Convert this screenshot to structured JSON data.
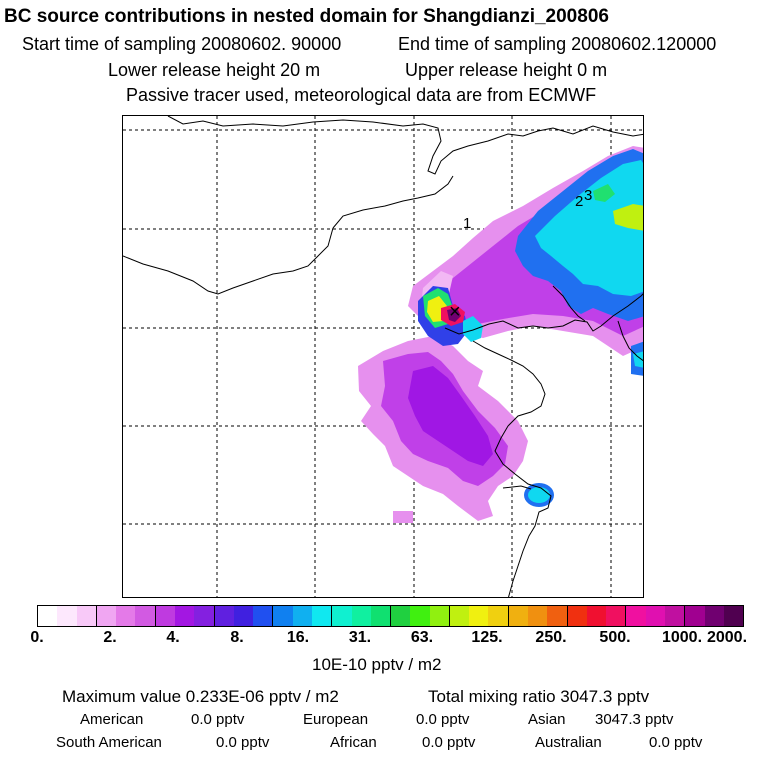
{
  "header": {
    "title": "BC  source contributions in nested domain for Shangdianzi_200806",
    "start_time": "Start time of sampling 20080602. 90000",
    "end_time": "End time of sampling 20080602.120000",
    "lower_release": "Lower release height   20 m",
    "upper_release": "Upper release height    0 m",
    "tracer_note": "Passive tracer used, meteorological data are from ECMWF"
  },
  "map": {
    "region_labels": [
      "1",
      "2",
      "3"
    ],
    "receptor_marker": "×"
  },
  "colorbar": {
    "tick_labels": [
      "0.",
      "2.",
      "4.",
      "8.",
      "16.",
      "31.",
      "63.",
      "125.",
      "250.",
      "500.",
      "1000.",
      "2000."
    ],
    "colors": [
      "#ffffff",
      "#fde8fd",
      "#f8c9f8",
      "#f0a6f2",
      "#e47ae8",
      "#d25ae2",
      "#bf3ae0",
      "#a317e2",
      "#8420e0",
      "#6020e0",
      "#4020e0",
      "#2050f0",
      "#1080f0",
      "#10b0f0",
      "#10e8f0",
      "#10f0d0",
      "#10f0a0",
      "#10e070",
      "#20d040",
      "#40f010",
      "#90f010",
      "#c0f010",
      "#f0f010",
      "#f0d010",
      "#f0b010",
      "#f09010",
      "#f06010",
      "#f03010",
      "#f01030",
      "#f01060",
      "#f010a0",
      "#e010b0",
      "#c010a0",
      "#a00090",
      "#700070",
      "#500050"
    ],
    "unit_label": "10E-10 pptv / m2"
  },
  "summary": {
    "max_value": "Maximum value  0.233E-06 pptv / m2",
    "total_mixing": "Total mixing ratio     3047.3 pptv",
    "rows": [
      [
        {
          "region": "American",
          "value": "0.0 pptv"
        },
        {
          "region": "European",
          "value": "0.0 pptv"
        },
        {
          "region": "Asian",
          "value": "3047.3 pptv"
        }
      ],
      [
        {
          "region": "South American",
          "value": "0.0 pptv"
        },
        {
          "region": "African",
          "value": "0.0 pptv"
        },
        {
          "region": "Australian",
          "value": "0.0 pptv"
        }
      ]
    ]
  }
}
